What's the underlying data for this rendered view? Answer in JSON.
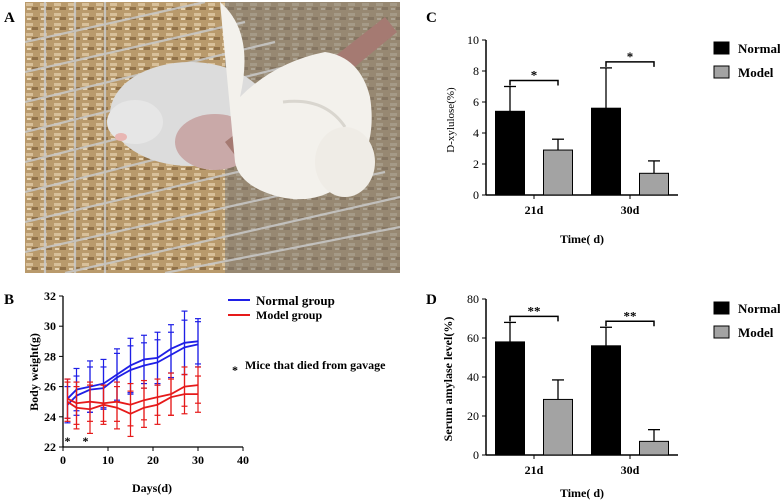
{
  "panels": {
    "a": "A",
    "b": "B",
    "c": "C",
    "d": "D"
  },
  "photo": {
    "icon": "mouse-gavage-photo"
  },
  "chart_data": [
    {
      "id": "B",
      "type": "line",
      "xlabel": "Days(d)",
      "ylabel": "Body weight(g)",
      "xlim": [
        0,
        40
      ],
      "ylim": [
        22,
        32
      ],
      "xticks": [
        0,
        10,
        20,
        30,
        40
      ],
      "yticks": [
        22,
        24,
        26,
        28,
        30,
        32
      ],
      "series": [
        {
          "name": "Normal group",
          "color": "#1f1fe6",
          "lines": [
            {
              "x": [
                1,
                3,
                6,
                9,
                12,
                15,
                18,
                21,
                24,
                27,
                30
              ],
              "y": [
                25.2,
                25.8,
                26.0,
                26.2,
                26.8,
                27.4,
                27.8,
                27.9,
                28.5,
                28.9,
                29.0
              ],
              "err": [
                1.3,
                1.4,
                1.7,
                1.6,
                1.7,
                1.8,
                1.6,
                1.7,
                1.6,
                2.1,
                1.5
              ]
            },
            {
              "x": [
                1,
                3,
                6,
                9,
                12,
                15,
                18,
                21,
                24,
                27,
                30
              ],
              "y": [
                24.8,
                25.4,
                25.8,
                25.9,
                26.6,
                27.1,
                27.4,
                27.6,
                28.1,
                28.6,
                28.8
              ],
              "err": [
                1.2,
                1.3,
                1.5,
                1.4,
                1.6,
                1.6,
                1.5,
                1.5,
                1.5,
                1.8,
                1.5
              ]
            }
          ]
        },
        {
          "name": "Model group",
          "color": "#e61a1a",
          "lines": [
            {
              "x": [
                1,
                3,
                6,
                9,
                12,
                15,
                18,
                21,
                24,
                27,
                30
              ],
              "y": [
                25.2,
                24.9,
                25.0,
                24.9,
                25.0,
                24.8,
                25.1,
                25.3,
                25.5,
                26.0,
                26.1
              ],
              "err": [
                1.3,
                1.4,
                1.3,
                1.2,
                1.3,
                1.4,
                1.3,
                1.2,
                1.4,
                1.3,
                1.2
              ]
            },
            {
              "x": [
                1,
                3,
                6,
                9,
                12,
                15,
                18,
                21,
                24,
                27,
                30
              ],
              "y": [
                25.0,
                24.6,
                24.5,
                24.8,
                24.6,
                24.2,
                24.6,
                24.8,
                25.3,
                25.5,
                25.5
              ],
              "err": [
                1.3,
                1.4,
                1.6,
                1.3,
                1.4,
                1.5,
                1.3,
                1.3,
                1.2,
                1.3,
                1.2
              ]
            }
          ]
        }
      ],
      "death_marks": {
        "symbol": "*",
        "x": [
          1,
          5
        ]
      },
      "annotation": "Mice that died from gavage"
    },
    {
      "id": "C",
      "type": "bar",
      "xlabel": "Time( d)",
      "ylabel": "D-xylulose(%)",
      "ylim": [
        0,
        10
      ],
      "yticks": [
        0,
        2,
        4,
        6,
        8,
        10
      ],
      "categories": [
        "21d",
        "30d"
      ],
      "series": [
        {
          "name": "Normal",
          "color": "#000000",
          "values": [
            5.4,
            5.6
          ],
          "err": [
            1.6,
            2.6
          ]
        },
        {
          "name": "Model",
          "color": "#a3a3a3",
          "values": [
            2.9,
            1.4
          ],
          "err": [
            0.7,
            0.8
          ]
        }
      ],
      "significance": [
        "*",
        "*"
      ]
    },
    {
      "id": "D",
      "type": "bar",
      "xlabel": "Time( d)",
      "ylabel": "Serum amylase level(%)",
      "ylim": [
        0,
        80
      ],
      "yticks": [
        0,
        20,
        40,
        60,
        80
      ],
      "categories": [
        "21d",
        "30d"
      ],
      "series": [
        {
          "name": "Normal",
          "color": "#000000",
          "values": [
            58,
            56
          ],
          "err": [
            10,
            9.5
          ]
        },
        {
          "name": "Model",
          "color": "#a3a3a3",
          "values": [
            28.5,
            7
          ],
          "err": [
            10,
            6
          ]
        }
      ],
      "significance": [
        "**",
        "**"
      ]
    }
  ]
}
